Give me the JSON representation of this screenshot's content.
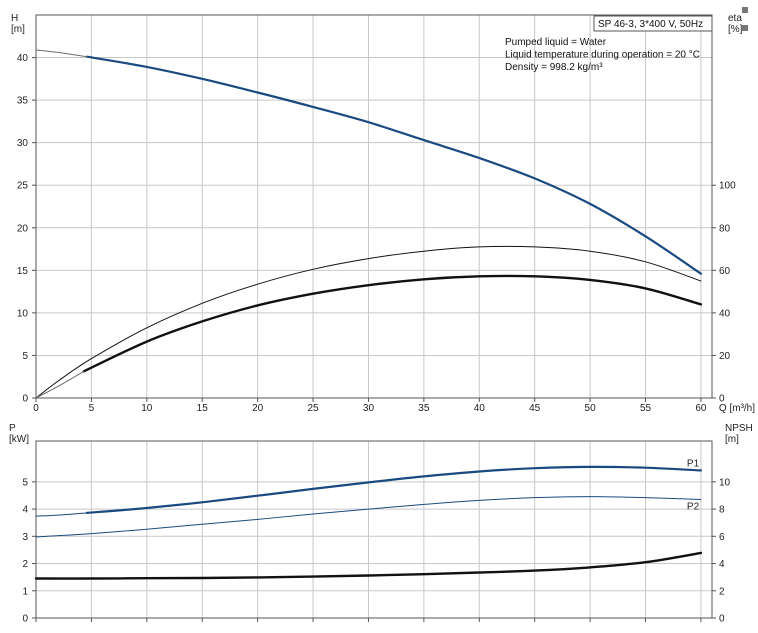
{
  "chart_data": [
    {
      "type": "line",
      "panel": "head-efficiency",
      "xlabel": "Q [m³/h]",
      "xlim": [
        0,
        61
      ],
      "x_ticks": [
        0,
        5,
        10,
        15,
        20,
        25,
        30,
        35,
        40,
        45,
        50,
        55,
        60
      ],
      "ylabel_left": [
        "H",
        "[m]"
      ],
      "ylim_left": [
        0,
        45
      ],
      "y_ticks_left": [
        0,
        5,
        10,
        15,
        20,
        25,
        30,
        35,
        40
      ],
      "ylabel_right": [
        "eta",
        "[%]"
      ],
      "ylim_right": [
        0,
        180
      ],
      "y_ticks_right": [
        0,
        20,
        40,
        60,
        80,
        100
      ],
      "info_box": "SP 46-3, 3*400 V, 50Hz",
      "info_lines": [
        "Pumped liquid = Water",
        "Liquid temperature during operation = 20 °C",
        "Density = 998.2 kg/m³"
      ],
      "grid": true,
      "series": [
        {
          "axis": "left",
          "color": "#1a4a80",
          "width": 2.2,
          "points": [
            [
              4.6,
              40.1
            ],
            [
              10,
              38.9
            ],
            [
              15,
              37.5
            ],
            [
              20,
              35.9
            ],
            [
              25,
              34.2
            ],
            [
              30,
              32.4
            ],
            [
              35,
              30.3
            ],
            [
              40,
              28.2
            ],
            [
              45,
              25.8
            ],
            [
              50,
              22.8
            ],
            [
              55,
              19.0
            ],
            [
              60,
              14.6
            ]
          ]
        },
        {
          "axis": "left",
          "color": "#6b6b6b",
          "width": 1,
          "points": [
            [
              0,
              40.9
            ],
            [
              2,
              40.6
            ],
            [
              4.6,
              40.1
            ]
          ]
        },
        {
          "axis": "right",
          "color": "#111111",
          "width": 1,
          "points": [
            [
              0,
              0
            ],
            [
              2,
              8
            ],
            [
              5,
              18.5
            ],
            [
              10,
              33
            ],
            [
              15,
              44.5
            ],
            [
              20,
              53.5
            ],
            [
              25,
              60.5
            ],
            [
              30,
              65.5
            ],
            [
              35,
              69.0
            ],
            [
              40,
              71.0
            ],
            [
              45,
              71.0
            ],
            [
              50,
              69.0
            ],
            [
              55,
              64.0
            ],
            [
              60,
              55.0
            ]
          ]
        },
        {
          "axis": "right",
          "color": "#111111",
          "width": 2.4,
          "points": [
            [
              4.3,
              12.5
            ],
            [
              10,
              26.5
            ],
            [
              15,
              36
            ],
            [
              20,
              43.5
            ],
            [
              25,
              49
            ],
            [
              30,
              53
            ],
            [
              35,
              55.8
            ],
            [
              40,
              57.2
            ],
            [
              45,
              57.2
            ],
            [
              50,
              55.5
            ],
            [
              55,
              51.5
            ],
            [
              60,
              44
            ]
          ]
        },
        {
          "axis": "right",
          "color": "#6b6b6b",
          "width": 1,
          "points": [
            [
              0,
              0
            ],
            [
              2,
              5.5
            ],
            [
              4.3,
              12.5
            ]
          ]
        }
      ]
    },
    {
      "type": "line",
      "panel": "power-npsh",
      "xlim": [
        0,
        61
      ],
      "x_ticks": [
        0,
        5,
        10,
        15,
        20,
        25,
        30,
        35,
        40,
        45,
        50,
        55,
        60
      ],
      "ylabel_left": [
        "P",
        "[kW]"
      ],
      "ylim_left": [
        0,
        6.5
      ],
      "y_ticks_left": [
        0,
        1,
        2,
        3,
        4,
        5
      ],
      "ylabel_right": [
        "NPSH",
        "[m]"
      ],
      "ylim_right": [
        0,
        13
      ],
      "y_ticks_right": [
        0,
        2,
        4,
        6,
        8,
        10
      ],
      "grid": true,
      "series": [
        {
          "name": "P1",
          "axis": "left",
          "color": "#1a4a80",
          "width": 2.2,
          "points": [
            [
              4.6,
              3.86
            ],
            [
              10,
              4.04
            ],
            [
              15,
              4.25
            ],
            [
              20,
              4.49
            ],
            [
              25,
              4.74
            ],
            [
              30,
              4.98
            ],
            [
              35,
              5.2
            ],
            [
              40,
              5.38
            ],
            [
              45,
              5.5
            ],
            [
              50,
              5.55
            ],
            [
              55,
              5.52
            ],
            [
              60,
              5.42
            ]
          ]
        },
        {
          "axis": "left",
          "color": "#1a4a80",
          "width": 1,
          "points": [
            [
              0,
              3.74
            ],
            [
              2,
              3.78
            ],
            [
              4.6,
              3.86
            ]
          ]
        },
        {
          "name": "P2",
          "axis": "left",
          "color": "#1a4a80",
          "width": 1,
          "points": [
            [
              0,
              2.98
            ],
            [
              5,
              3.1
            ],
            [
              10,
              3.26
            ],
            [
              15,
              3.44
            ],
            [
              20,
              3.62
            ],
            [
              25,
              3.82
            ],
            [
              30,
              4.0
            ],
            [
              35,
              4.17
            ],
            [
              40,
              4.32
            ],
            [
              45,
              4.42
            ],
            [
              50,
              4.46
            ],
            [
              55,
              4.42
            ],
            [
              60,
              4.35
            ]
          ]
        },
        {
          "axis": "right",
          "color": "#111111",
          "width": 2.4,
          "points": [
            [
              0,
              2.9
            ],
            [
              5,
              2.9
            ],
            [
              10,
              2.92
            ],
            [
              15,
              2.94
            ],
            [
              20,
              2.98
            ],
            [
              25,
              3.04
            ],
            [
              30,
              3.12
            ],
            [
              35,
              3.22
            ],
            [
              40,
              3.34
            ],
            [
              45,
              3.48
            ],
            [
              50,
              3.72
            ],
            [
              55,
              4.1
            ],
            [
              60,
              4.78
            ]
          ]
        }
      ]
    }
  ]
}
